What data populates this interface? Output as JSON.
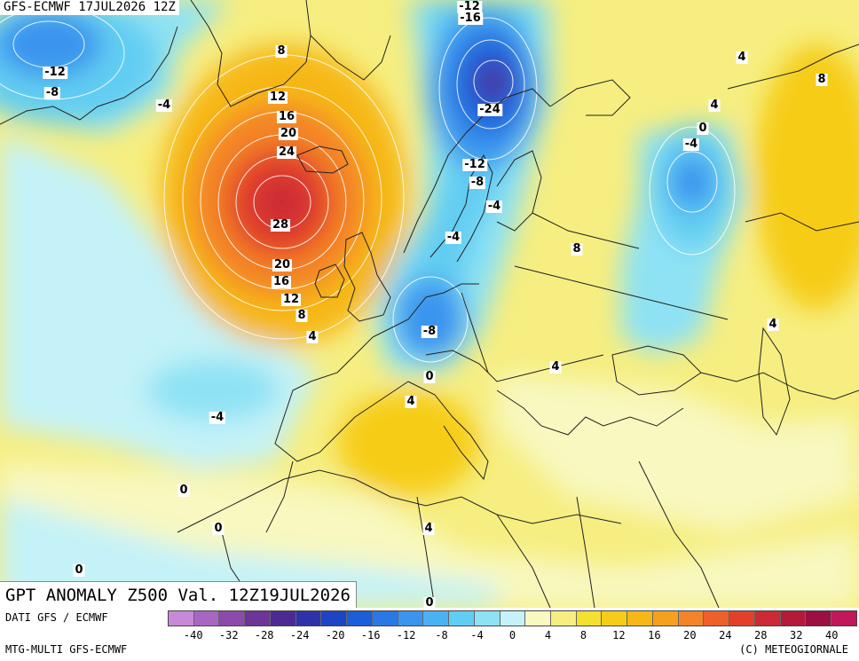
{
  "header": {
    "model_run": "GFS-ECMWF 17JUL2026 12Z"
  },
  "title": "GPT ANOMALY Z500 Val. 12Z19JUL2026",
  "footer": {
    "data_source": "DATI GFS / ECMWF",
    "product": "MTG-MULTI GFS-ECMWF",
    "copyright": "(C) METEOGIORNALE"
  },
  "contour_labels": [
    {
      "id": "m12-nw",
      "text": "-12"
    },
    {
      "id": "m8-nw",
      "text": "-8"
    },
    {
      "id": "m4-atl-n",
      "text": "-4"
    },
    {
      "id": "p8-greenland",
      "text": "8"
    },
    {
      "id": "p12-n",
      "text": "12"
    },
    {
      "id": "p16-n",
      "text": "16"
    },
    {
      "id": "p20-n",
      "text": "20"
    },
    {
      "id": "p24-n",
      "text": "24"
    },
    {
      "id": "p28",
      "text": "28"
    },
    {
      "id": "p20-s",
      "text": "20"
    },
    {
      "id": "p16-s",
      "text": "16"
    },
    {
      "id": "p12-s",
      "text": "12"
    },
    {
      "id": "p8-s",
      "text": "8"
    },
    {
      "id": "p4-s",
      "text": "4"
    },
    {
      "id": "m12-top",
      "text": "-12"
    },
    {
      "id": "m16-top",
      "text": "-16"
    },
    {
      "id": "m24",
      "text": "-24"
    },
    {
      "id": "m12-scan",
      "text": "-12"
    },
    {
      "id": "m8-scan",
      "text": "-8"
    },
    {
      "id": "m4-scan",
      "text": "-4"
    },
    {
      "id": "m4-den",
      "text": "-4"
    },
    {
      "id": "m8-ger",
      "text": "-8"
    },
    {
      "id": "p4-ne",
      "text": "4"
    },
    {
      "id": "p8-ne",
      "text": "8"
    },
    {
      "id": "p4-russia",
      "text": "4"
    },
    {
      "id": "zero-russia",
      "text": "0"
    },
    {
      "id": "m4-russia",
      "text": "-4"
    },
    {
      "id": "p8-baltic",
      "text": "8"
    },
    {
      "id": "p4-east",
      "text": "4"
    },
    {
      "id": "p4-balkan",
      "text": "4"
    },
    {
      "id": "zero-alps",
      "text": "0"
    },
    {
      "id": "p4-med",
      "text": "4"
    },
    {
      "id": "m4-azores",
      "text": "-4"
    },
    {
      "id": "zero-africa-w",
      "text": "0"
    },
    {
      "id": "zero-africa-s",
      "text": "0"
    },
    {
      "id": "p4-libya",
      "text": "4"
    },
    {
      "id": "zero-sw",
      "text": "0"
    },
    {
      "id": "zero-bottom",
      "text": "0"
    }
  ],
  "legend": {
    "colors": [
      "#c88ad8",
      "#a865c2",
      "#8c4aaa",
      "#6e3596",
      "#4d2a92",
      "#2e32a8",
      "#1c44c4",
      "#1a5ed8",
      "#2a78e6",
      "#3b94ee",
      "#4bb2f2",
      "#62cdf2",
      "#8ee2f4",
      "#c4f2f8",
      "#f8f8c0",
      "#f6ee80",
      "#f4e030",
      "#f6cc18",
      "#f6b818",
      "#f6a020",
      "#f48428",
      "#ee602a",
      "#e2402c",
      "#cc2a34",
      "#b41a3a",
      "#9a1040",
      "#c0185a"
    ],
    "ticks": [
      "-40",
      "-32",
      "-28",
      "-24",
      "-20",
      "-16",
      "-12",
      "-8",
      "-4",
      "0",
      "4",
      "8",
      "12",
      "16",
      "20",
      "24",
      "28",
      "32",
      "40"
    ]
  }
}
